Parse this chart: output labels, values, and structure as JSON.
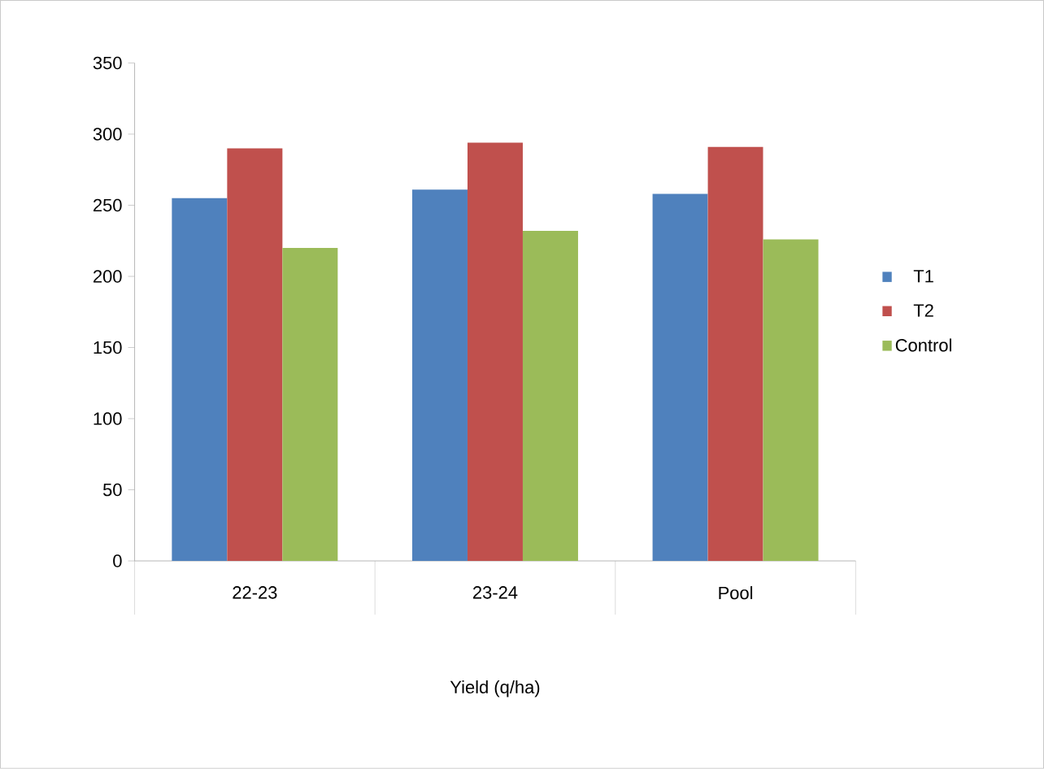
{
  "chart_data": {
    "type": "bar",
    "xlabel": "Yield (q/ha)",
    "categories": [
      "22-23",
      "23-24",
      "Pool"
    ],
    "series": [
      {
        "name": "T1",
        "color": "#4f81bd",
        "values": [
          255,
          261,
          258
        ]
      },
      {
        "name": "T2",
        "color": "#c0504d",
        "values": [
          290,
          294,
          291
        ]
      },
      {
        "name": "Control",
        "color": "#9bbb59",
        "values": [
          220,
          232,
          226
        ]
      }
    ],
    "ylim": [
      0,
      350
    ],
    "yticks": [
      0,
      50,
      100,
      150,
      200,
      250,
      300,
      350
    ],
    "grid": false,
    "legend": "right"
  }
}
